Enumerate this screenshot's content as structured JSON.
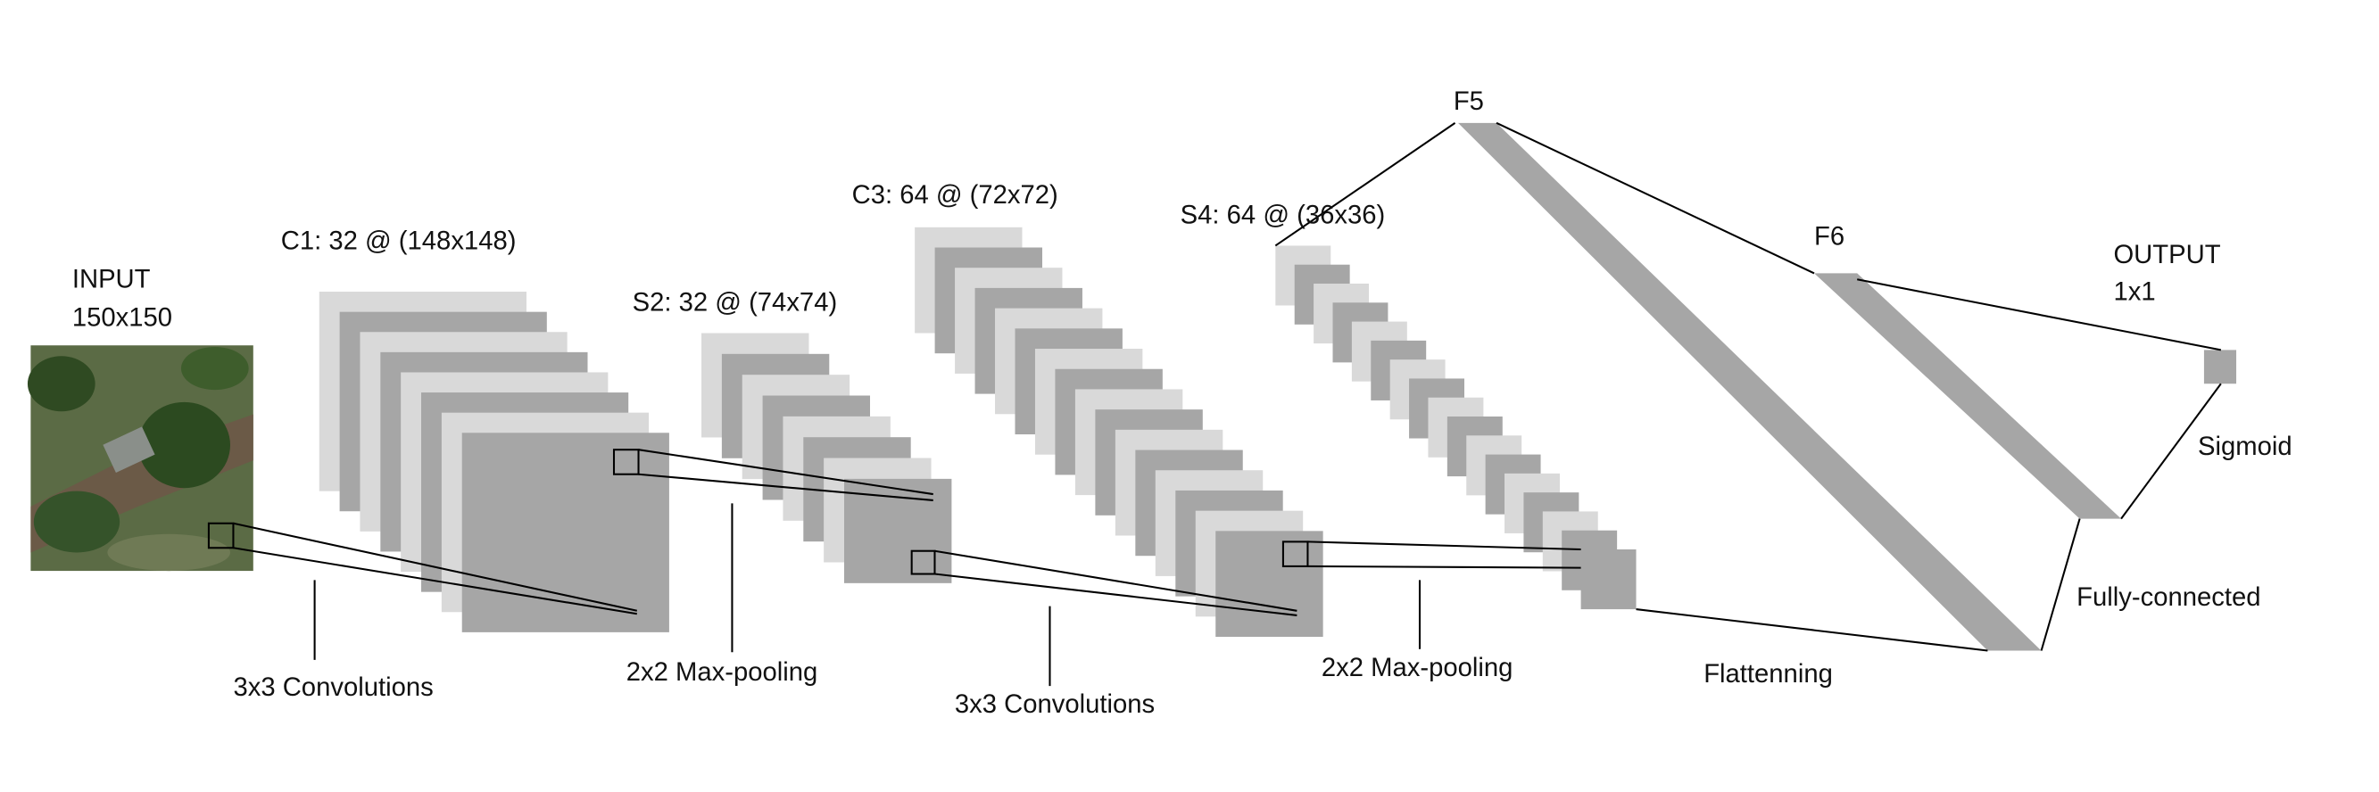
{
  "layers": [
    {
      "label": "C1: 32 @ (148x148)"
    },
    {
      "label": "S2: 32 @ (74x74)"
    },
    {
      "label": "C3: 64 @ (72x72)"
    },
    {
      "label": "S4: 64 @ (36x36)"
    },
    {
      "label": "F5"
    },
    {
      "label": "F6"
    }
  ],
  "input": {
    "title": "INPUT",
    "size": "150x150"
  },
  "output": {
    "title": "OUTPUT",
    "size": "1x1"
  },
  "operations": [
    "3x3 Convolutions",
    "2x2 Max-pooling",
    "3x3 Convolutions",
    "2x2 Max-pooling",
    "Flattenning",
    "Fully-connected",
    "Sigmoid"
  ]
}
